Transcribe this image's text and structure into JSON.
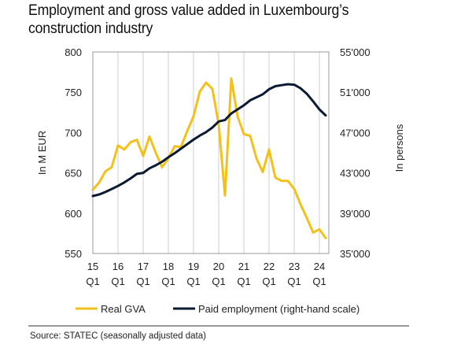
{
  "title": "Employment and gross value added in Luxembourg’s construction industry",
  "source": "Source: STATEC (seasonally adjusted data)",
  "colors": {
    "gva": "#F2C11B",
    "employment": "#0B1A33",
    "grid": "#cccccc"
  },
  "chart_data": {
    "type": "line",
    "title": "Employment and gross value added in Luxembourg’s construction industry",
    "ylabel_left": "In M EUR",
    "ylabel_right": "In persons",
    "ylim_left": [
      550,
      800
    ],
    "ylim_right": [
      35000,
      55000
    ],
    "yticks_left": [
      "550",
      "600",
      "650",
      "700",
      "750",
      "800"
    ],
    "yticks_right": [
      "35'000",
      "39'000",
      "43'000",
      "47'000",
      "51'000",
      "55'000"
    ],
    "grid": "vertical at year ticks",
    "legend_position": "bottom",
    "x_tick_labels": [
      {
        "year": "15",
        "quarter": "Q1",
        "t": 0
      },
      {
        "year": "16",
        "quarter": "Q1",
        "t": 4
      },
      {
        "year": "17",
        "quarter": "Q1",
        "t": 8
      },
      {
        "year": "18",
        "quarter": "Q1",
        "t": 12
      },
      {
        "year": "19",
        "quarter": "Q1",
        "t": 16
      },
      {
        "year": "20",
        "quarter": "Q1",
        "t": 20
      },
      {
        "year": "21",
        "quarter": "Q1",
        "t": 24
      },
      {
        "year": "22",
        "quarter": "Q1",
        "t": 28
      },
      {
        "year": "23",
        "quarter": "Q1",
        "t": 32
      },
      {
        "year": "24",
        "quarter": "Q1",
        "t": 36
      }
    ],
    "series": [
      {
        "name": "Real GVA",
        "axis": "left",
        "x": [
          0,
          1,
          2,
          3,
          4,
          5,
          6,
          7,
          8,
          9,
          10,
          11,
          12,
          13,
          14,
          15,
          16,
          17,
          18,
          19,
          20,
          21,
          22,
          23,
          24,
          25,
          26,
          27,
          28,
          29,
          30,
          31,
          32,
          33,
          34,
          35,
          36,
          37
        ],
        "values": [
          629,
          638,
          652,
          657,
          684,
          679,
          688,
          691,
          671,
          695,
          675,
          657,
          668,
          683,
          682,
          702,
          720,
          751,
          762,
          754,
          710,
          622,
          767,
          720,
          698,
          696,
          668,
          651,
          679,
          644,
          640,
          640,
          630,
          611,
          594,
          576,
          580,
          569
        ]
      },
      {
        "name": "Paid employment (right-hand scale)",
        "axis": "right",
        "x": [
          0,
          1,
          2,
          3,
          4,
          5,
          6,
          7,
          8,
          9,
          10,
          11,
          12,
          13,
          14,
          15,
          16,
          17,
          18,
          19,
          20,
          21,
          22,
          23,
          24,
          25,
          26,
          27,
          28,
          29,
          30,
          31,
          32,
          33,
          34,
          35,
          36,
          37
        ],
        "values": [
          40700,
          40850,
          41100,
          41400,
          41700,
          42050,
          42450,
          42900,
          43000,
          43450,
          43750,
          44100,
          44550,
          44950,
          45400,
          45850,
          46300,
          46700,
          47050,
          47500,
          48100,
          48250,
          48900,
          49300,
          49700,
          50200,
          50500,
          50800,
          51300,
          51600,
          51700,
          51800,
          51750,
          51400,
          50850,
          50100,
          49300,
          48700
        ]
      }
    ]
  }
}
